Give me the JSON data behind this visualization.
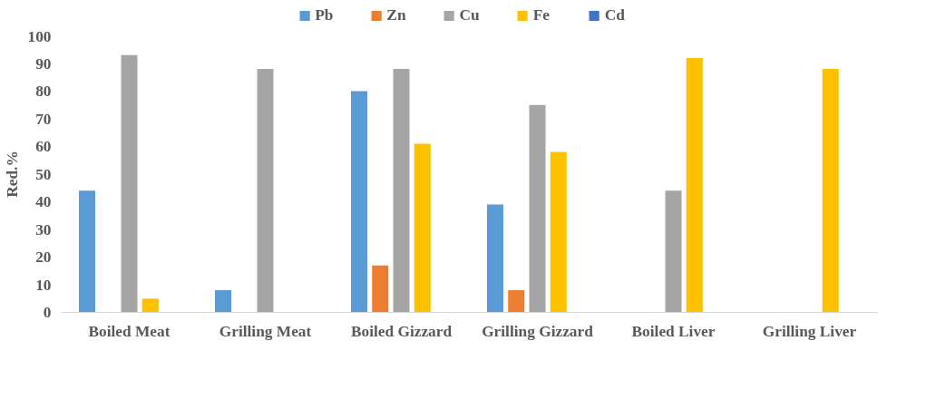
{
  "chart_data": {
    "type": "bar",
    "ylabel": "Red.%",
    "categories": [
      "Boiled Meat",
      "Grilling Meat",
      "Boiled Gizzard",
      "Grilling Gizzard",
      "Boiled Liver",
      "Grilling Liver"
    ],
    "series": [
      {
        "name": "Pb",
        "color": "#5b9bd5",
        "values": [
          44,
          8,
          80,
          39,
          null,
          null
        ]
      },
      {
        "name": "Zn",
        "color": "#ed7d31",
        "values": [
          null,
          null,
          17,
          8,
          null,
          null
        ]
      },
      {
        "name": "Cu",
        "color": "#a5a5a5",
        "values": [
          93,
          88,
          88,
          75,
          44,
          null
        ]
      },
      {
        "name": "Fe",
        "color": "#ffc000",
        "values": [
          5,
          null,
          61,
          58,
          92,
          88
        ]
      },
      {
        "name": "Cd",
        "color": "#4472c4",
        "values": [
          null,
          null,
          null,
          null,
          null,
          null
        ]
      }
    ],
    "ylim": [
      0,
      100
    ],
    "yticks": [
      0,
      10,
      20,
      30,
      40,
      50,
      60,
      70,
      80,
      90,
      100
    ],
    "grid": false,
    "legend": "top"
  }
}
